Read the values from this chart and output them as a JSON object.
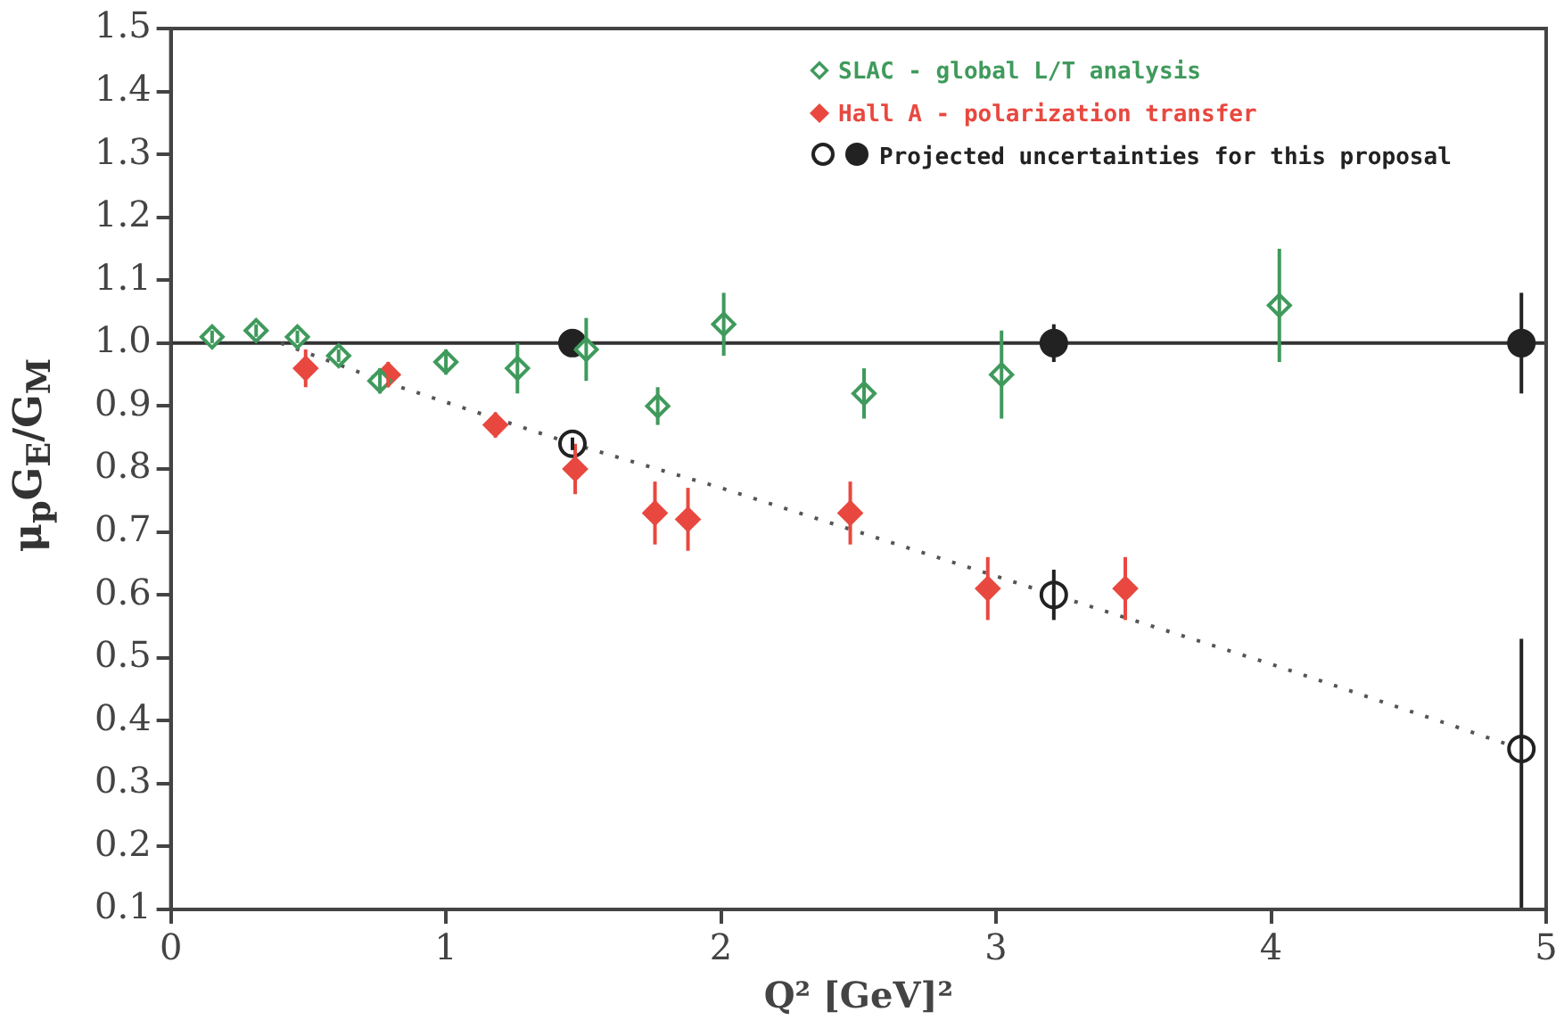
{
  "chart_data": {
    "type": "scatter",
    "xlabel": "Q² [GeV]²",
    "ylabel": "μ$_{p}$G$_{E}$/G$_{M}$",
    "xlim": [
      0,
      5
    ],
    "xticks": [
      0,
      1,
      2,
      3,
      4,
      5
    ],
    "ylim": [
      0.1,
      1.5
    ],
    "yticks": [
      0.1,
      0.2,
      0.3,
      0.4,
      0.5,
      0.6,
      0.7,
      0.8,
      0.9,
      {
        "value": 1,
        "label": "1.0"
      },
      1.1,
      1.2,
      1.3,
      1.4,
      1.5
    ],
    "grid": false,
    "legend": "top right",
    "ref_lines": [
      {
        "axis": "y",
        "value": 1,
        "color": "#333333",
        "line_style": "solid"
      }
    ],
    "series": [
      {
        "name": "SLAC - global L/T analysis",
        "color": "#3f9a5c",
        "marker": "diamond-open",
        "x": [
          0.15,
          0.31,
          0.46,
          0.61,
          0.76,
          1.0,
          1.26,
          1.51,
          1.77,
          2.01,
          2.52,
          3.02,
          4.03
        ],
        "values": [
          1.01,
          1.02,
          1.01,
          0.98,
          0.94,
          0.97,
          0.96,
          0.99,
          0.9,
          1.03,
          0.92,
          0.95,
          1.06
        ],
        "errors": [
          0.01,
          0.01,
          0.01,
          0.01,
          0.02,
          0.02,
          0.04,
          0.05,
          0.03,
          0.05,
          0.04,
          0.07,
          0.09
        ]
      },
      {
        "name": "Hall A - polarization transfer",
        "color": "#e8483f",
        "marker": "diamond",
        "x": [
          0.49,
          0.79,
          1.18,
          1.47,
          1.76,
          1.88,
          2.47,
          2.97,
          3.47
        ],
        "values": [
          0.96,
          0.95,
          0.87,
          0.8,
          0.73,
          0.72,
          0.73,
          0.61,
          0.61
        ],
        "errors": [
          0.03,
          0.02,
          0.02,
          0.04,
          0.05,
          0.05,
          0.05,
          0.05,
          0.05
        ]
      },
      {
        "name": "Projected uncertainties for this proposal",
        "color": "#222222",
        "marker": "circle-open",
        "x": [
          1.46,
          3.21,
          4.91
        ],
        "values": [
          0.84,
          0.6,
          0.355
        ],
        "errors": [
          0.01,
          0.04,
          [
            0.1,
            0.53
          ]
        ]
      },
      {
        "color": "#222222",
        "marker": "circle",
        "x": [
          1.46,
          3.21,
          4.91
        ],
        "values": [
          1.0,
          1.0,
          1.0
        ],
        "errors": [
          0.01,
          0.03,
          0.08
        ]
      },
      {
        "type": "line",
        "color": "#555555",
        "marker": "none",
        "line_style": "dotted",
        "x": [
          0.4,
          0.8,
          1.46,
          2.0,
          2.5,
          3.21,
          4.0,
          4.91
        ],
        "values": [
          1.0,
          0.935,
          0.84,
          0.77,
          0.7,
          0.6,
          0.49,
          0.355
        ]
      }
    ]
  }
}
